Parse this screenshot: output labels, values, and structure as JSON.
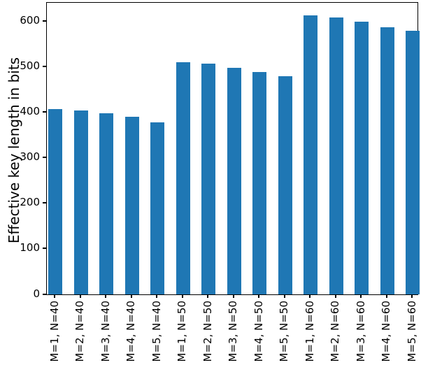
{
  "chart_data": {
    "type": "bar",
    "title": "",
    "xlabel": "",
    "ylabel": "Effective key length in bits",
    "categories": [
      "M=1, N=40",
      "M=2, N=40",
      "M=3, N=40",
      "M=4, N=40",
      "M=5, N=40",
      "M=1, N=50",
      "M=2, N=50",
      "M=3, N=50",
      "M=4, N=50",
      "M=5, N=50",
      "M=1, N=60",
      "M=2, N=60",
      "M=3, N=60",
      "M=4, N=60",
      "M=5, N=60"
    ],
    "values": [
      406,
      403,
      397,
      390,
      378,
      509,
      506,
      498,
      488,
      479,
      612,
      608,
      599,
      587,
      578
    ],
    "yticks": [
      0,
      100,
      200,
      300,
      400,
      500,
      600
    ],
    "ylim": [
      0,
      640
    ],
    "grid": false,
    "legend_position": "none",
    "x_tick_rotation_deg": 90,
    "bar_color": "#1f77b4",
    "axis_color": "#000000",
    "background_color": "#ffffff"
  }
}
